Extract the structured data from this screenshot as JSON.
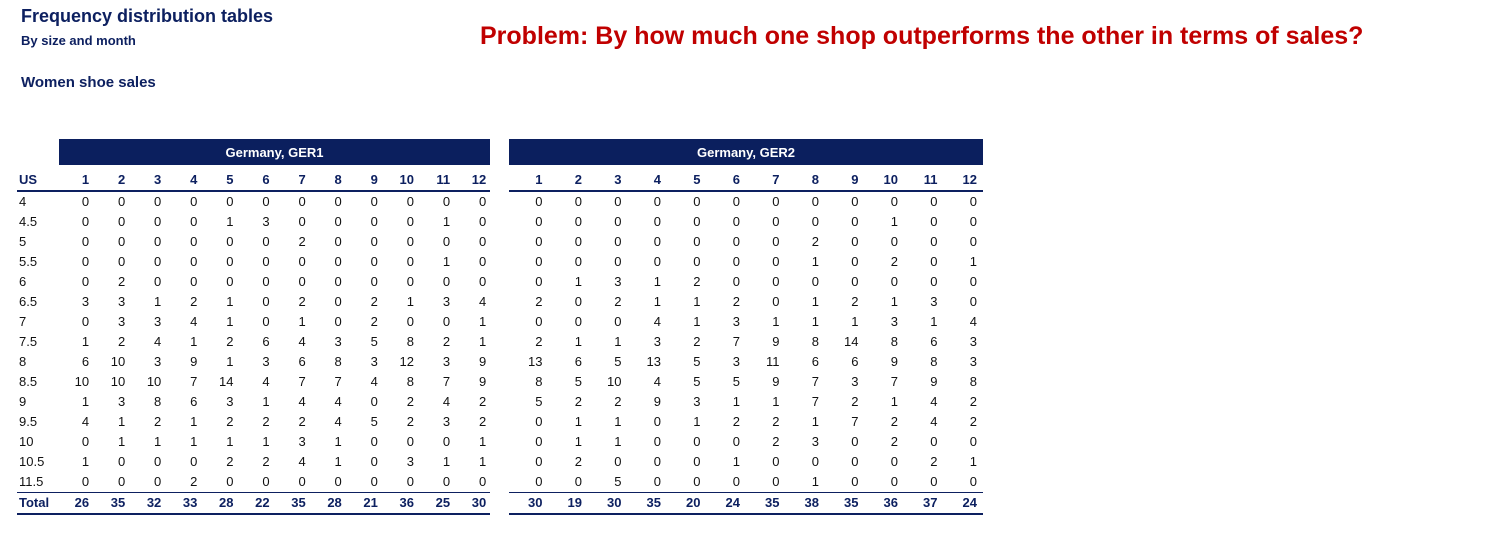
{
  "header": {
    "title": "Frequency distribution tables",
    "subtitle": "By size and month",
    "problem": "Problem: By how much one shop outperforms the other in terms of sales?",
    "section": "Women shoe sales"
  },
  "tables": [
    {
      "title": "Germany, GER1",
      "header": [
        "US",
        1,
        2,
        3,
        4,
        5,
        6,
        7,
        8,
        9,
        10,
        11,
        12
      ],
      "rows": [
        [
          4,
          0,
          0,
          0,
          0,
          0,
          0,
          0,
          0,
          0,
          0,
          0,
          0
        ],
        [
          4.5,
          0,
          0,
          0,
          0,
          1,
          3,
          0,
          0,
          0,
          0,
          1,
          0
        ],
        [
          5,
          0,
          0,
          0,
          0,
          0,
          0,
          2,
          0,
          0,
          0,
          0,
          0
        ],
        [
          5.5,
          0,
          0,
          0,
          0,
          0,
          0,
          0,
          0,
          0,
          0,
          1,
          0
        ],
        [
          6,
          0,
          2,
          0,
          0,
          0,
          0,
          0,
          0,
          0,
          0,
          0,
          0
        ],
        [
          6.5,
          3,
          3,
          1,
          2,
          1,
          0,
          2,
          0,
          2,
          1,
          3,
          4
        ],
        [
          7,
          0,
          3,
          3,
          4,
          1,
          0,
          1,
          0,
          2,
          0,
          0,
          1
        ],
        [
          7.5,
          1,
          2,
          4,
          1,
          2,
          6,
          4,
          3,
          5,
          8,
          2,
          1
        ],
        [
          8,
          6,
          10,
          3,
          9,
          1,
          3,
          6,
          8,
          3,
          12,
          3,
          9
        ],
        [
          8.5,
          10,
          10,
          10,
          7,
          14,
          4,
          7,
          7,
          4,
          8,
          7,
          9
        ],
        [
          9,
          1,
          3,
          8,
          6,
          3,
          1,
          4,
          4,
          0,
          2,
          4,
          2
        ],
        [
          9.5,
          4,
          1,
          2,
          1,
          2,
          2,
          2,
          4,
          5,
          2,
          3,
          2
        ],
        [
          10,
          0,
          1,
          1,
          1,
          1,
          1,
          3,
          1,
          0,
          0,
          0,
          1
        ],
        [
          10.5,
          1,
          0,
          0,
          0,
          2,
          2,
          4,
          1,
          0,
          3,
          1,
          1
        ],
        [
          11.5,
          0,
          0,
          0,
          2,
          0,
          0,
          0,
          0,
          0,
          0,
          0,
          0
        ]
      ],
      "total": [
        "Total",
        26,
        35,
        32,
        33,
        28,
        22,
        35,
        28,
        21,
        36,
        25,
        30
      ]
    },
    {
      "title": "Germany, GER2",
      "header": [
        1,
        2,
        3,
        4,
        5,
        6,
        7,
        8,
        9,
        10,
        11,
        12
      ],
      "rows": [
        [
          0,
          0,
          0,
          0,
          0,
          0,
          0,
          0,
          0,
          0,
          0,
          0
        ],
        [
          0,
          0,
          0,
          0,
          0,
          0,
          0,
          0,
          0,
          1,
          0,
          0
        ],
        [
          0,
          0,
          0,
          0,
          0,
          0,
          0,
          2,
          0,
          0,
          0,
          0
        ],
        [
          0,
          0,
          0,
          0,
          0,
          0,
          0,
          1,
          0,
          2,
          0,
          1
        ],
        [
          0,
          1,
          3,
          1,
          2,
          0,
          0,
          0,
          0,
          0,
          0,
          0
        ],
        [
          2,
          0,
          2,
          1,
          1,
          2,
          0,
          1,
          2,
          1,
          3,
          0
        ],
        [
          0,
          0,
          0,
          4,
          1,
          3,
          1,
          1,
          1,
          3,
          1,
          4
        ],
        [
          2,
          1,
          1,
          3,
          2,
          7,
          9,
          8,
          14,
          8,
          6,
          3
        ],
        [
          13,
          6,
          5,
          13,
          5,
          3,
          11,
          6,
          6,
          9,
          8,
          3
        ],
        [
          8,
          5,
          10,
          4,
          5,
          5,
          9,
          7,
          3,
          7,
          9,
          8
        ],
        [
          5,
          2,
          2,
          9,
          3,
          1,
          1,
          7,
          2,
          1,
          4,
          2
        ],
        [
          0,
          1,
          1,
          0,
          1,
          2,
          2,
          1,
          7,
          2,
          4,
          2
        ],
        [
          0,
          1,
          1,
          0,
          0,
          0,
          2,
          3,
          0,
          2,
          0,
          0
        ],
        [
          0,
          2,
          0,
          0,
          0,
          1,
          0,
          0,
          0,
          0,
          2,
          1
        ],
        [
          0,
          0,
          5,
          0,
          0,
          0,
          0,
          1,
          0,
          0,
          0,
          0
        ]
      ],
      "total": [
        30,
        19,
        30,
        35,
        20,
        24,
        35,
        38,
        35,
        36,
        37,
        24
      ]
    }
  ]
}
